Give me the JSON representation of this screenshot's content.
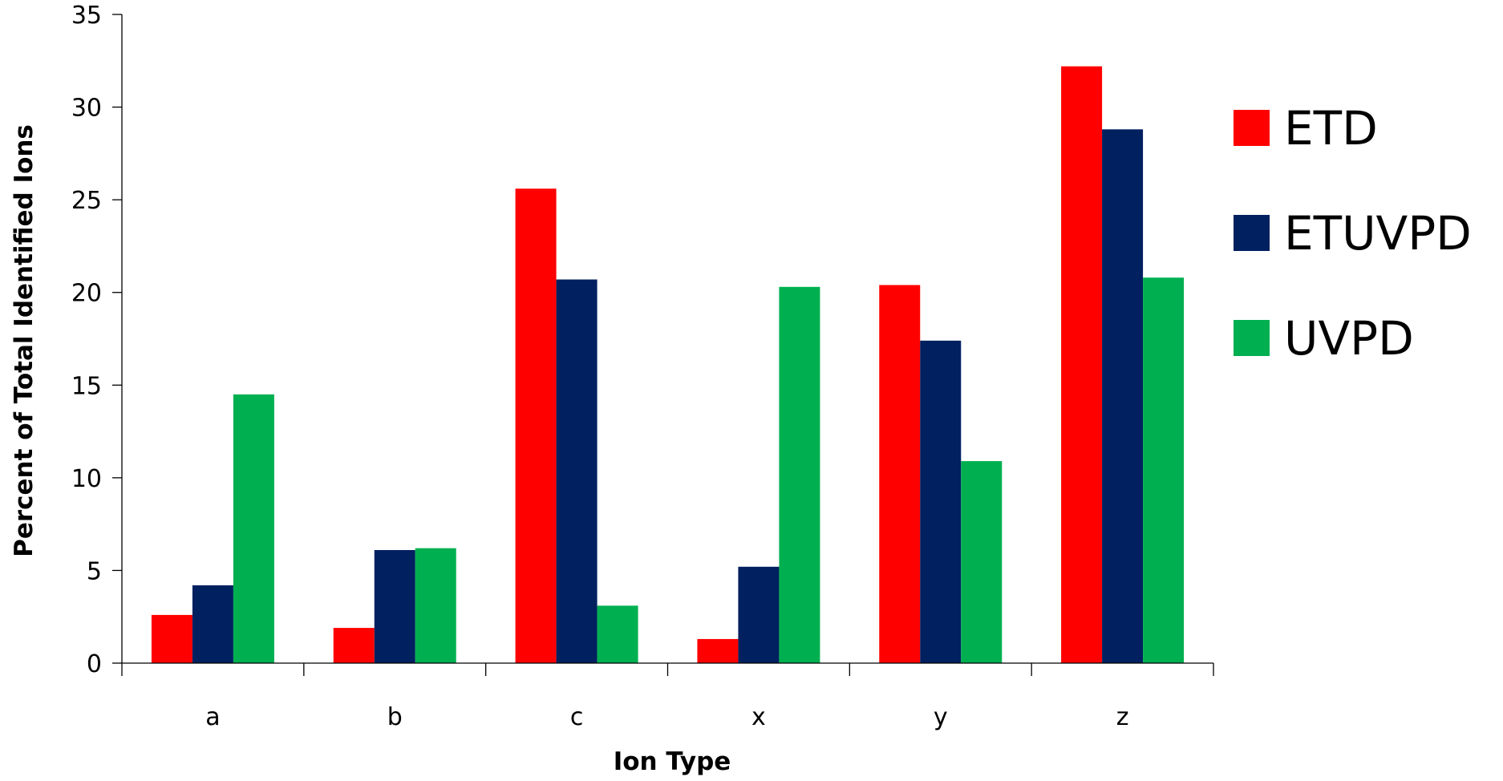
{
  "chart_data": {
    "type": "bar",
    "title": "",
    "xlabel": "Ion Type",
    "ylabel": "Percent of Total Identified Ions",
    "categories": [
      "a",
      "b",
      "c",
      "x",
      "y",
      "z"
    ],
    "ylim": [
      0,
      35
    ],
    "yticks": [
      0,
      5,
      10,
      15,
      20,
      25,
      30,
      35
    ],
    "grid": false,
    "legend_position": "right",
    "series": [
      {
        "name": "ETD",
        "color": "#ff0000",
        "values": [
          2.6,
          1.9,
          25.6,
          1.3,
          20.4,
          32.2
        ]
      },
      {
        "name": "ETUVPD",
        "color": "#002060",
        "values": [
          4.2,
          6.1,
          20.7,
          5.2,
          17.4,
          28.8
        ]
      },
      {
        "name": "UVPD",
        "color": "#00b050",
        "values": [
          14.5,
          6.2,
          3.1,
          20.3,
          10.9,
          20.8
        ]
      }
    ]
  }
}
